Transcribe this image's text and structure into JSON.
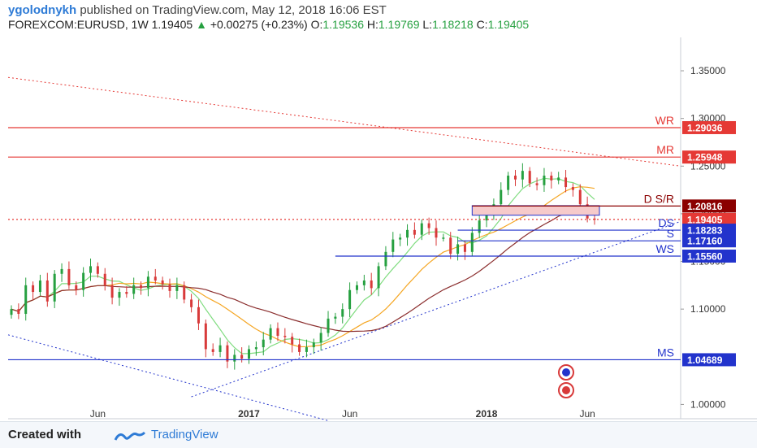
{
  "header": {
    "author": "ygolodnykh",
    "published_text": "published on TradingView.com, May 12, 2018 16:06 EST",
    "symbol": "FOREXCOM:EURUSD, 1W",
    "last": "1.19405",
    "change": "+0.00275 (+0.23%)",
    "open_label": "O:",
    "open": "1.19536",
    "high_label": "H:",
    "high": "1.19769",
    "low_label": "L:",
    "low": "1.18218",
    "close_label": "C:",
    "close": "1.19405"
  },
  "footer": {
    "created_with": "Created with",
    "brand": "TradingView"
  },
  "colors": {
    "up": "#26a040",
    "down": "#d83a3a",
    "resistance": "#e53935",
    "support": "#2233cc",
    "pivot": "#8b0000",
    "ma_green": "#7fdc7f",
    "ma_orange": "#f5a623",
    "ma_brown": "#8b2e2e"
  },
  "chart_data": {
    "type": "candlestick",
    "title": "",
    "ylim": [
      0.985,
      1.385
    ],
    "y_ticks": [
      {
        "value": 1.0,
        "label": "1.00000"
      },
      {
        "value": 1.1,
        "label": "1.10000"
      },
      {
        "value": 1.15,
        "label": "1.15000"
      },
      {
        "value": 1.2,
        "label": "1.20000"
      },
      {
        "value": 1.25,
        "label": "1.25000"
      },
      {
        "value": 1.3,
        "label": "1.30000"
      },
      {
        "value": 1.35,
        "label": "1.35000"
      }
    ],
    "x_ticks": [
      {
        "week": 12,
        "label": "Jun"
      },
      {
        "week": 33,
        "label": "2017"
      },
      {
        "week": 47,
        "label": "Jun"
      },
      {
        "week": 66,
        "label": "2018"
      },
      {
        "week": 80,
        "label": "Jun"
      }
    ],
    "close_series": [
      1.1,
      1.095,
      1.125,
      1.118,
      1.13,
      1.108,
      1.137,
      1.142,
      1.125,
      1.12,
      1.138,
      1.145,
      1.137,
      1.125,
      1.112,
      1.118,
      1.116,
      1.125,
      1.122,
      1.134,
      1.13,
      1.126,
      1.119,
      1.125,
      1.11,
      1.102,
      1.085,
      1.058,
      1.055,
      1.062,
      1.045,
      1.052,
      1.048,
      1.058,
      1.06,
      1.068,
      1.08,
      1.072,
      1.071,
      1.063,
      1.055,
      1.06,
      1.065,
      1.075,
      1.09,
      1.092,
      1.1,
      1.12,
      1.125,
      1.13,
      1.122,
      1.145,
      1.16,
      1.173,
      1.175,
      1.183,
      1.178,
      1.19,
      1.185,
      1.175,
      1.175,
      1.158,
      1.168,
      1.16,
      1.18,
      1.193,
      1.202,
      1.21,
      1.225,
      1.24,
      1.236,
      1.245,
      1.232,
      1.23,
      1.24,
      1.235,
      1.238,
      1.228,
      1.225,
      1.21,
      1.195,
      1.194
    ],
    "levels": [
      {
        "name": "WR",
        "value": 1.29036,
        "label": "1.29036",
        "color": "resistance"
      },
      {
        "name": "MR",
        "value": 1.25948,
        "label": "1.25948",
        "color": "resistance"
      },
      {
        "name": "D S/R",
        "value": 1.20816,
        "label": "1.20816",
        "color": "pivot"
      },
      {
        "name": "",
        "value": 1.19405,
        "label": "1.19405",
        "color": "resistance",
        "dashed": true
      },
      {
        "name": "DS",
        "value": 1.18283,
        "label": "1.18283",
        "color": "support"
      },
      {
        "name": "S",
        "value": 1.1716,
        "label": "1.17160",
        "color": "support"
      },
      {
        "name": "WS",
        "value": 1.1556,
        "label": "1.15560",
        "color": "support"
      },
      {
        "name": "MS",
        "value": 1.04689,
        "label": "1.04689",
        "color": "support"
      }
    ],
    "grid": false
  }
}
